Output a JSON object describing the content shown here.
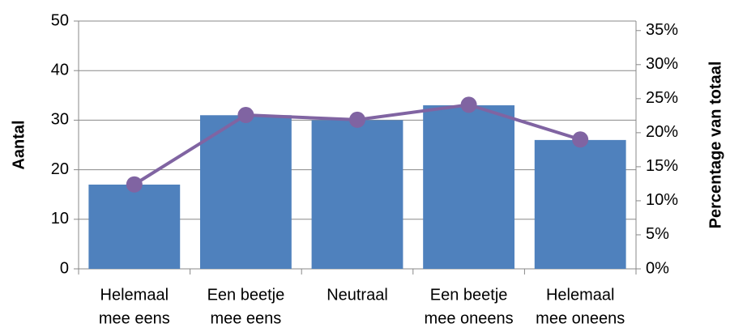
{
  "chart_data": {
    "type": "bar",
    "categories": [
      [
        "Helemaal",
        "mee eens"
      ],
      [
        "Een beetje",
        "mee eens"
      ],
      [
        "Neutraal"
      ],
      [
        "Een beetje",
        "mee oneens"
      ],
      [
        "Helemaal",
        "mee oneens"
      ]
    ],
    "series": [
      {
        "name": "Aantal",
        "type": "bar",
        "color": "#4f81bd",
        "values": [
          17,
          31,
          30,
          33,
          26
        ]
      },
      {
        "name": "Percentage van totaal",
        "type": "line",
        "axis": "y2",
        "color": "#8064a2",
        "values": [
          12.4,
          22.6,
          21.9,
          24.1,
          19.0
        ]
      }
    ],
    "ylabel": "Aantal",
    "y2label": "Percentage van totaal",
    "ylim": [
      0,
      50
    ],
    "yticks": [
      0,
      10,
      20,
      30,
      40,
      50
    ],
    "y2lim": [
      0,
      36.4
    ],
    "y2ticks": [
      {
        "value": 0,
        "label": "0%"
      },
      {
        "value": 5,
        "label": "5%"
      },
      {
        "value": 10,
        "label": "10%"
      },
      {
        "value": 15,
        "label": "15%"
      },
      {
        "value": 20,
        "label": "20%"
      },
      {
        "value": 25,
        "label": "25%"
      },
      {
        "value": 30,
        "label": "30%"
      },
      {
        "value": 35,
        "label": "35%"
      }
    ],
    "grid": true
  }
}
